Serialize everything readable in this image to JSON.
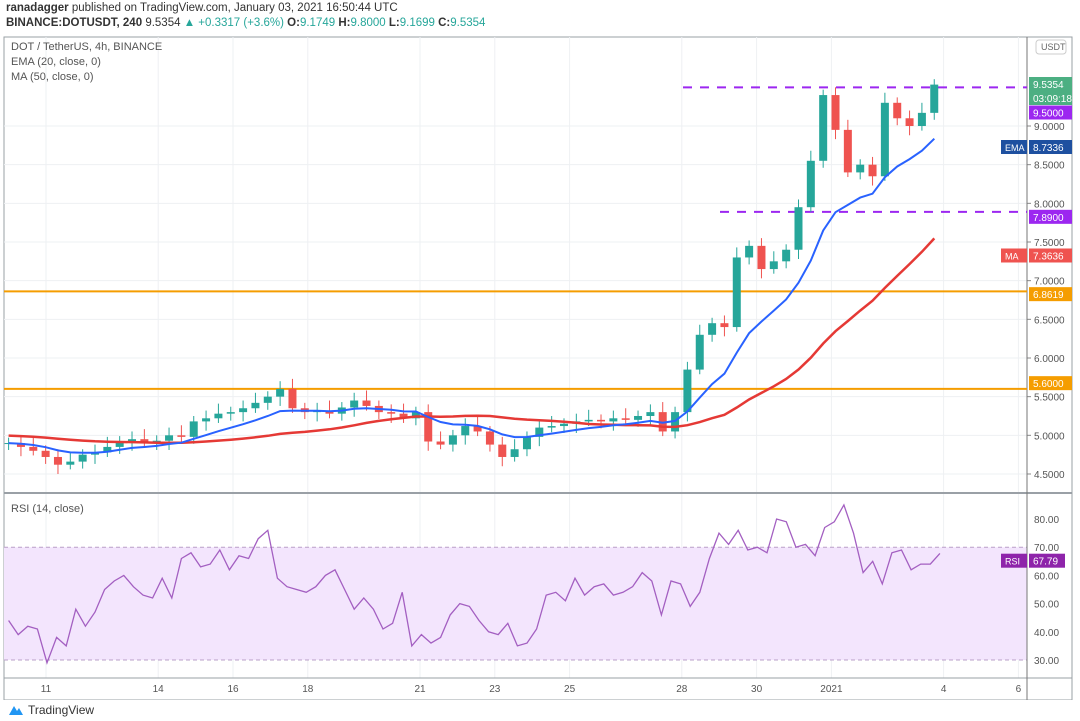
{
  "header": {
    "author": "ranadagger",
    "published_text": "published on TradingView.com, January 03, 2021 16:50:44 UTC",
    "symbol": "BINANCE:DOTUSDT, 240",
    "last": "9.5354",
    "change": "+0.3317 (+3.6%)",
    "o_label": "O:",
    "o": "9.1749",
    "h_label": "H:",
    "h": "9.8000",
    "l_label": "L:",
    "l": "9.1699",
    "c_label": "C:",
    "c": "9.5354"
  },
  "legend": {
    "title": "DOT / TetherUS, 4h, BINANCE",
    "ema": "EMA (20, close, 0)",
    "ma": "MA (50, close, 0)",
    "rsi": "RSI (14, close)"
  },
  "footer": {
    "brand": "TradingView"
  },
  "colors": {
    "up": "#26a69a",
    "down": "#ef5350",
    "ema": "#2962ff",
    "ma": "#e53935",
    "resistance": "#f59d00",
    "levels": "#9c27f0",
    "rsi": "#a35fc1",
    "rsi_band": "#f3e5fd"
  },
  "chart_data": [
    {
      "type": "candlestick",
      "currency": "USDT",
      "start": "2020-12-10 00:00",
      "interval": "8h",
      "closes": [
        4.9,
        4.85,
        4.8,
        4.72,
        4.62,
        4.66,
        4.75,
        4.78,
        4.85,
        4.92,
        4.95,
        4.9,
        4.93,
        5.0,
        4.98,
        5.18,
        5.22,
        5.28,
        5.3,
        5.35,
        5.42,
        5.5,
        5.6,
        5.35,
        5.3,
        5.32,
        5.28,
        5.36,
        5.45,
        5.38,
        5.3,
        5.28,
        5.22,
        5.3,
        4.92,
        4.88,
        5.0,
        5.12,
        5.05,
        4.88,
        4.72,
        4.82,
        4.98,
        5.1,
        5.12,
        5.15,
        5.18,
        5.2,
        5.18,
        5.22,
        5.2,
        5.25,
        5.3,
        5.05,
        5.3,
        5.85,
        6.3,
        6.45,
        6.4,
        7.3,
        7.45,
        7.15,
        7.25,
        7.4,
        7.95,
        8.55,
        9.4,
        8.95,
        8.4,
        8.5,
        8.35,
        9.3,
        9.1,
        9.0,
        9.17,
        9.5354
      ],
      "ylim": [
        4.25,
        10.15
      ],
      "y_ticks": [
        "4.5000",
        "5.0000",
        "5.5000",
        "6.0000",
        "6.5000",
        "7.0000",
        "7.5000",
        "8.0000",
        "8.5000",
        "9.0000"
      ],
      "x_ticks": [
        "11",
        "14",
        "16",
        "18",
        "21",
        "23",
        "25",
        "28",
        "30",
        "2021",
        "4",
        "6"
      ],
      "grid": true,
      "horizontal_levels": [
        {
          "value": 9.5,
          "label": "9.5000",
          "style": "dashed",
          "color": "#9c27f0"
        },
        {
          "value": 7.89,
          "label": "7.8900",
          "style": "dashed",
          "color": "#9c27f0"
        },
        {
          "value": 6.8619,
          "label": "6.8619",
          "style": "solid",
          "color": "#f59d00"
        },
        {
          "value": 5.6,
          "label": "5.6000",
          "style": "solid",
          "color": "#f59d00"
        }
      ],
      "price_label": "9.5354",
      "countdown": "03:09:18",
      "ema_label": "EMA",
      "ema_value": "8.7336",
      "ma_label": "MA",
      "ma_value": "7.3636"
    },
    {
      "type": "line",
      "name": "RSI",
      "start": "2020-12-10 00:00",
      "end": "2021-01-03 20:00",
      "values": [
        44,
        39,
        42,
        41,
        29,
        38,
        35,
        48,
        42,
        47,
        55,
        58,
        60,
        56,
        53,
        52,
        59,
        52,
        66,
        68,
        63,
        64,
        69,
        62,
        67,
        66,
        73,
        76,
        59,
        56,
        55,
        54,
        56,
        60,
        62,
        55,
        48,
        52,
        48,
        41,
        43,
        54,
        35,
        39,
        36,
        38,
        46,
        50,
        49,
        44,
        40,
        39,
        43,
        35,
        36,
        41,
        53,
        54,
        51,
        59,
        53,
        56,
        57,
        53,
        54,
        56,
        61,
        58,
        46,
        58,
        57,
        49,
        54,
        66,
        75,
        71,
        76,
        69,
        70,
        68,
        80,
        79,
        70,
        71,
        67,
        77,
        79,
        85,
        75,
        61,
        65,
        57,
        68,
        69,
        62,
        64,
        64,
        67.79
      ],
      "ylim": [
        25,
        88
      ],
      "y_ticks": [
        "30.00",
        "40.00",
        "50.00",
        "60.00",
        "70.00",
        "80.00"
      ],
      "band": [
        30,
        70
      ],
      "label": "RSI",
      "value_label": "67.79"
    }
  ]
}
